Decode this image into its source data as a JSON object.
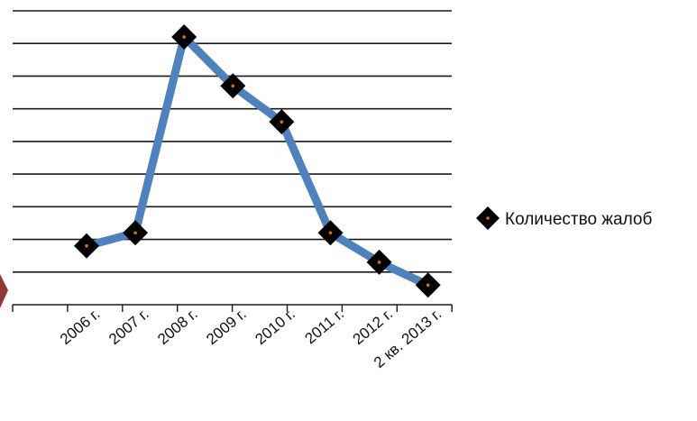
{
  "chart_data": {
    "type": "line",
    "categories": [
      "2006 г.",
      "2007 г.",
      "2008 г.",
      "2009 г.",
      "2010 г.",
      "2011 г.",
      "2012 г.",
      "2 кв. 2013 г."
    ],
    "series": [
      {
        "name": "Количество жалоб",
        "values": [
          1.8,
          2.2,
          8.2,
          6.7,
          5.6,
          2.2,
          1.3,
          0.6
        ],
        "line_color": "#4F81BD",
        "marker": "diamond",
        "marker_color": "#000000",
        "marker_dot_color": "#E46C0A"
      }
    ],
    "ylim": [
      0,
      9
    ],
    "grid": true,
    "y_tick_labels_shown": false,
    "legend_placement": "right",
    "left_edge_shape_color": "#943634"
  }
}
